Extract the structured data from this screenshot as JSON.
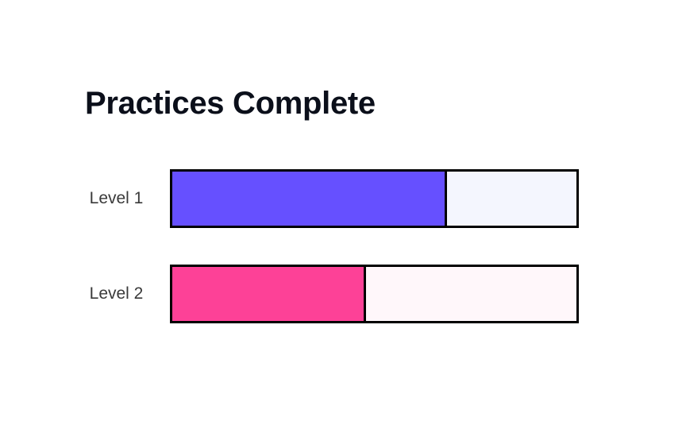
{
  "chart_data": {
    "type": "bar",
    "title": "Practices Complete",
    "orientation": "horizontal",
    "categories": [
      "Level 1",
      "Level 2"
    ],
    "values": [
      0.68,
      0.48
    ],
    "value_unit": "fraction complete",
    "xlim": [
      0,
      1
    ],
    "grid": false,
    "legend": "none",
    "colors": {
      "fill": [
        "#6650ff",
        "#fd4197"
      ],
      "track": [
        "#f4f6fe",
        "#fff7fa"
      ],
      "border": "#000000"
    }
  }
}
